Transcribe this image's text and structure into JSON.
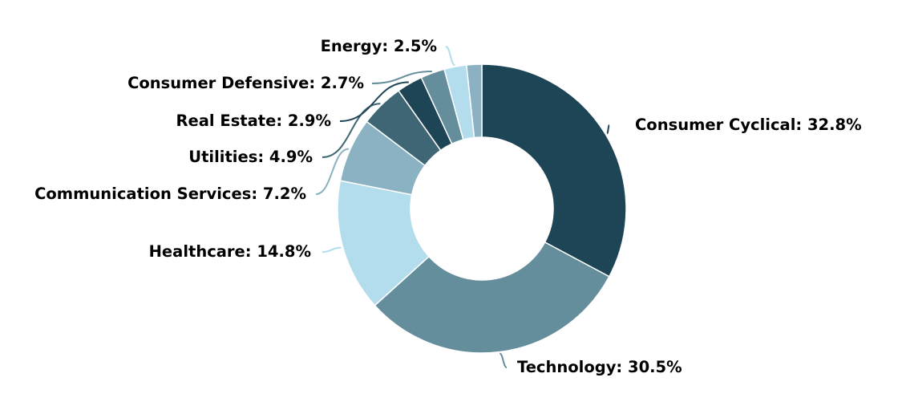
{
  "chart_data": {
    "type": "pie",
    "variant": "donut",
    "title": "",
    "start_angle_deg": 0,
    "direction": "clockwise",
    "slices": [
      {
        "label": "Consumer Cyclical",
        "value": 32.8,
        "display": "Consumer Cyclical: 32.8%",
        "color": "#1e4555"
      },
      {
        "label": "Technology",
        "value": 30.5,
        "display": "Technology: 30.5%",
        "color": "#648e9c"
      },
      {
        "label": "Healthcare",
        "value": 14.8,
        "display": "Healthcare: 14.8%",
        "color": "#b3ddec"
      },
      {
        "label": "Communication Services",
        "value": 7.2,
        "display": "Communication Services: 7.2%",
        "color": "#8ab2c2"
      },
      {
        "label": "Utilities",
        "value": 4.9,
        "display": "Utilities: 4.9%",
        "color": "#3f6674"
      },
      {
        "label": "Real Estate",
        "value": 2.9,
        "display": "Real Estate: 2.9%",
        "color": "#1e4555"
      },
      {
        "label": "Consumer Defensive",
        "value": 2.7,
        "display": "Consumer Defensive: 2.7%",
        "color": "#648e9c"
      },
      {
        "label": "Energy",
        "value": 2.5,
        "display": "Energy: 2.5%",
        "color": "#b3ddec"
      },
      {
        "value": 1.7,
        "color": "#8ab2c2"
      }
    ]
  }
}
